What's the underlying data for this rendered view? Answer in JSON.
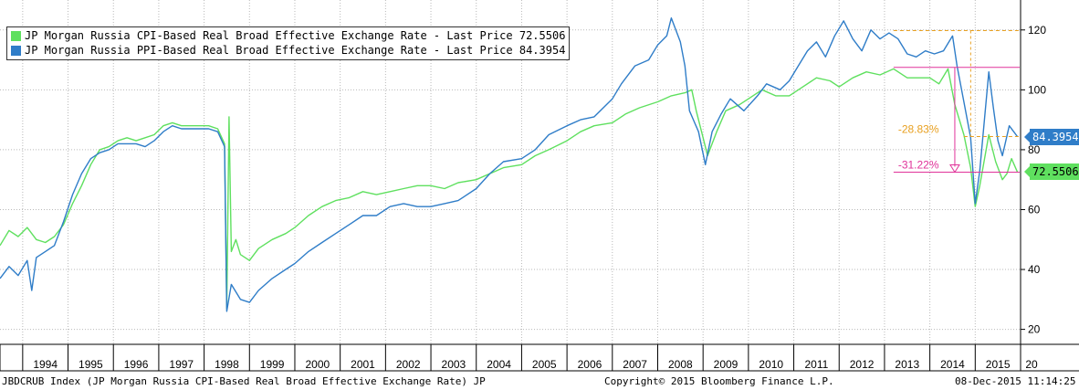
{
  "chart_data": {
    "type": "line",
    "x_range": [
      1993.5,
      2016.0
    ],
    "ylim": [
      15,
      130
    ],
    "y_ticks": [
      "20",
      "40",
      "60",
      "80",
      "100",
      "120"
    ],
    "x_ticks": [
      "1994",
      "1995",
      "1996",
      "1997",
      "1998",
      "1999",
      "2000",
      "2001",
      "2002",
      "2003",
      "2004",
      "2005",
      "2006",
      "2007",
      "2008",
      "2009",
      "2010",
      "2011",
      "2012",
      "2013",
      "2014",
      "2015",
      "20"
    ],
    "grid": true,
    "legend_position": "top-left",
    "series": [
      {
        "name": "JP Morgan Russia CPI-Based Real Broad Effective Exchange Rate - Last Price 72.5506",
        "color": "#5fe05f",
        "last_value": "72.5506",
        "points": [
          [
            1993.5,
            48
          ],
          [
            1993.7,
            53
          ],
          [
            1993.9,
            51
          ],
          [
            1994.1,
            54
          ],
          [
            1994.3,
            50
          ],
          [
            1994.5,
            49
          ],
          [
            1994.7,
            51
          ],
          [
            1994.9,
            55
          ],
          [
            1995.1,
            62
          ],
          [
            1995.3,
            68
          ],
          [
            1995.5,
            75
          ],
          [
            1995.7,
            80
          ],
          [
            1995.9,
            81
          ],
          [
            1996.1,
            83
          ],
          [
            1996.3,
            84
          ],
          [
            1996.5,
            83
          ],
          [
            1996.7,
            84
          ],
          [
            1996.9,
            85
          ],
          [
            1997.1,
            88
          ],
          [
            1997.3,
            89
          ],
          [
            1997.5,
            88
          ],
          [
            1997.7,
            88
          ],
          [
            1997.9,
            88
          ],
          [
            1998.1,
            88
          ],
          [
            1998.3,
            87
          ],
          [
            1998.45,
            82
          ],
          [
            1998.5,
            27
          ],
          [
            1998.55,
            91
          ],
          [
            1998.6,
            46
          ],
          [
            1998.7,
            50
          ],
          [
            1998.8,
            45
          ],
          [
            1999.0,
            43
          ],
          [
            1999.2,
            47
          ],
          [
            1999.5,
            50
          ],
          [
            1999.8,
            52
          ],
          [
            2000.0,
            54
          ],
          [
            2000.3,
            58
          ],
          [
            2000.6,
            61
          ],
          [
            2000.9,
            63
          ],
          [
            2001.2,
            64
          ],
          [
            2001.5,
            66
          ],
          [
            2001.8,
            65
          ],
          [
            2002.1,
            66
          ],
          [
            2002.4,
            67
          ],
          [
            2002.7,
            68
          ],
          [
            2003.0,
            68
          ],
          [
            2003.3,
            67
          ],
          [
            2003.6,
            69
          ],
          [
            2004.0,
            70
          ],
          [
            2004.3,
            72
          ],
          [
            2004.6,
            74
          ],
          [
            2005.0,
            75
          ],
          [
            2005.3,
            78
          ],
          [
            2005.6,
            80
          ],
          [
            2006.0,
            83
          ],
          [
            2006.3,
            86
          ],
          [
            2006.6,
            88
          ],
          [
            2007.0,
            89
          ],
          [
            2007.3,
            92
          ],
          [
            2007.6,
            94
          ],
          [
            2008.0,
            96
          ],
          [
            2008.3,
            98
          ],
          [
            2008.6,
            99
          ],
          [
            2008.75,
            100
          ],
          [
            2008.85,
            93
          ],
          [
            2009.0,
            84
          ],
          [
            2009.1,
            78
          ],
          [
            2009.3,
            86
          ],
          [
            2009.5,
            93
          ],
          [
            2009.8,
            95
          ],
          [
            2010.0,
            97
          ],
          [
            2010.3,
            100
          ],
          [
            2010.6,
            98
          ],
          [
            2010.9,
            98
          ],
          [
            2011.2,
            101
          ],
          [
            2011.5,
            104
          ],
          [
            2011.8,
            103
          ],
          [
            2012.0,
            101
          ],
          [
            2012.3,
            104
          ],
          [
            2012.6,
            106
          ],
          [
            2012.9,
            105
          ],
          [
            2013.2,
            107
          ],
          [
            2013.5,
            104
          ],
          [
            2013.8,
            104
          ],
          [
            2014.0,
            104
          ],
          [
            2014.2,
            102
          ],
          [
            2014.4,
            107
          ],
          [
            2014.55,
            95
          ],
          [
            2014.75,
            85
          ],
          [
            2014.9,
            74
          ],
          [
            2015.0,
            61
          ],
          [
            2015.1,
            68
          ],
          [
            2015.3,
            85
          ],
          [
            2015.45,
            76
          ],
          [
            2015.6,
            70
          ],
          [
            2015.7,
            72
          ],
          [
            2015.8,
            77
          ],
          [
            2015.93,
            72.5506
          ]
        ]
      },
      {
        "name": "JP Morgan Russia PPI-Based Real Broad Effective Exchange Rate - Last Price 84.3954",
        "color": "#2f7dc8",
        "last_value": "84.3954",
        "points": [
          [
            1993.5,
            37
          ],
          [
            1993.7,
            41
          ],
          [
            1993.9,
            38
          ],
          [
            1994.1,
            43
          ],
          [
            1994.2,
            33
          ],
          [
            1994.3,
            44
          ],
          [
            1994.5,
            46
          ],
          [
            1994.7,
            48
          ],
          [
            1994.9,
            56
          ],
          [
            1995.1,
            65
          ],
          [
            1995.3,
            72
          ],
          [
            1995.5,
            77
          ],
          [
            1995.7,
            79
          ],
          [
            1995.9,
            80
          ],
          [
            1996.1,
            82
          ],
          [
            1996.3,
            82
          ],
          [
            1996.5,
            82
          ],
          [
            1996.7,
            81
          ],
          [
            1996.9,
            83
          ],
          [
            1997.1,
            86
          ],
          [
            1997.3,
            88
          ],
          [
            1997.5,
            87
          ],
          [
            1997.7,
            87
          ],
          [
            1997.9,
            87
          ],
          [
            1998.1,
            87
          ],
          [
            1998.3,
            86
          ],
          [
            1998.45,
            81
          ],
          [
            1998.5,
            26
          ],
          [
            1998.6,
            35
          ],
          [
            1998.8,
            30
          ],
          [
            1999.0,
            29
          ],
          [
            1999.2,
            33
          ],
          [
            1999.5,
            37
          ],
          [
            1999.8,
            40
          ],
          [
            2000.0,
            42
          ],
          [
            2000.3,
            46
          ],
          [
            2000.6,
            49
          ],
          [
            2000.9,
            52
          ],
          [
            2001.2,
            55
          ],
          [
            2001.5,
            58
          ],
          [
            2001.8,
            58
          ],
          [
            2002.1,
            61
          ],
          [
            2002.4,
            62
          ],
          [
            2002.7,
            61
          ],
          [
            2003.0,
            61
          ],
          [
            2003.3,
            62
          ],
          [
            2003.6,
            63
          ],
          [
            2004.0,
            67
          ],
          [
            2004.3,
            72
          ],
          [
            2004.6,
            76
          ],
          [
            2005.0,
            77
          ],
          [
            2005.3,
            80
          ],
          [
            2005.6,
            85
          ],
          [
            2006.0,
            88
          ],
          [
            2006.3,
            90
          ],
          [
            2006.6,
            91
          ],
          [
            2007.0,
            97
          ],
          [
            2007.2,
            102
          ],
          [
            2007.5,
            108
          ],
          [
            2007.8,
            110
          ],
          [
            2008.0,
            115
          ],
          [
            2008.2,
            118
          ],
          [
            2008.3,
            124
          ],
          [
            2008.5,
            116
          ],
          [
            2008.6,
            108
          ],
          [
            2008.7,
            93
          ],
          [
            2008.9,
            86
          ],
          [
            2009.05,
            75
          ],
          [
            2009.2,
            86
          ],
          [
            2009.4,
            92
          ],
          [
            2009.6,
            97
          ],
          [
            2009.9,
            93
          ],
          [
            2010.2,
            98
          ],
          [
            2010.4,
            102
          ],
          [
            2010.7,
            100
          ],
          [
            2010.9,
            103
          ],
          [
            2011.1,
            108
          ],
          [
            2011.3,
            113
          ],
          [
            2011.5,
            116
          ],
          [
            2011.7,
            111
          ],
          [
            2011.9,
            118
          ],
          [
            2012.1,
            123
          ],
          [
            2012.3,
            117
          ],
          [
            2012.5,
            113
          ],
          [
            2012.7,
            120
          ],
          [
            2012.9,
            117
          ],
          [
            2013.1,
            119
          ],
          [
            2013.3,
            117
          ],
          [
            2013.5,
            112
          ],
          [
            2013.7,
            111
          ],
          [
            2013.9,
            113
          ],
          [
            2014.1,
            112
          ],
          [
            2014.3,
            113
          ],
          [
            2014.5,
            118
          ],
          [
            2014.6,
            108
          ],
          [
            2014.75,
            96
          ],
          [
            2014.9,
            84
          ],
          [
            2015.0,
            62
          ],
          [
            2015.1,
            73
          ],
          [
            2015.3,
            106
          ],
          [
            2015.4,
            94
          ],
          [
            2015.5,
            83
          ],
          [
            2015.6,
            78
          ],
          [
            2015.75,
            88
          ],
          [
            2015.85,
            86
          ],
          [
            2015.93,
            84.3954
          ]
        ]
      }
    ],
    "annotations": [
      {
        "label": "-28.83%",
        "color": "#e8a020",
        "level": 119.8,
        "low": 84.4
      },
      {
        "label": "-31.22%",
        "color": "#e0339a",
        "level": 107.5,
        "low": 72.5
      }
    ]
  },
  "footer": {
    "left": "JBDCRUB Index (JP Morgan Russia CPI-Based Real Broad Effective Exchange Rate) JP",
    "center": "Copyright© 2015 Bloomberg Finance L.P.",
    "right": "08-Dec-2015 11:14:25"
  },
  "price_tags": {
    "ppi": "84.3954",
    "cpi": "72.5506"
  }
}
